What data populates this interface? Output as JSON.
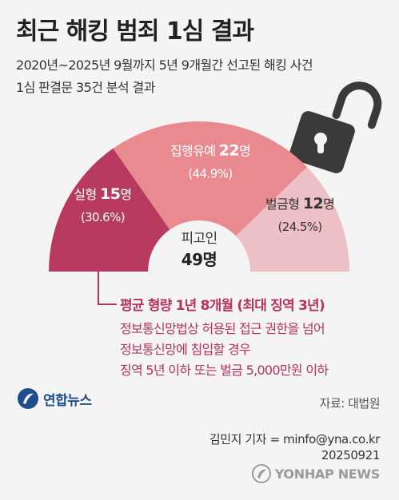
{
  "header": {
    "title": "최근 해킹 범죄 1심 결과",
    "subtitle_line1": "2020년~2025년 9월까지 5년 9개월간 선고된 해킹 사건",
    "subtitle_line2": "1심 판결문 35건 분석 결과"
  },
  "chart_data": {
    "type": "pie",
    "shape": "semicircle",
    "center_label": "피고인",
    "center_value": "49명",
    "unit": "명",
    "slices": [
      {
        "label": "실형",
        "value": 15,
        "value_text": "15",
        "percent": 30.6,
        "percent_text": "(30.6%)",
        "color": "#b83a5e"
      },
      {
        "label": "집행유예",
        "value": 22,
        "value_text": "22",
        "percent": 44.9,
        "percent_text": "(44.9%)",
        "color": "#e98a91"
      },
      {
        "label": "벌금형",
        "value": 12,
        "value_text": "12",
        "percent": 24.5,
        "percent_text": "(24.5%)",
        "color": "#ecc0c4"
      }
    ]
  },
  "note": {
    "headline": "평균 형량 1년 8개월 (최대 징역 3년)",
    "line1": "정보통신망법상 허용된 접근 권한을 넘어",
    "line2": "정보통신망에 침입할 경우",
    "line3": "징역 5년 이하 또는 벌금 5,000만원 이하"
  },
  "footer": {
    "logo_text": "연합뉴스",
    "source": "자료: 대법원",
    "credit_line1": "김민지 기자 = minfo@yna.co.kr",
    "credit_line2": "20250921",
    "watermark": "YONHAP NEWS"
  },
  "colors": {
    "accent": "#b5345b",
    "lock": "#3a3a3a",
    "logo_blue": "#1f4e8c"
  }
}
